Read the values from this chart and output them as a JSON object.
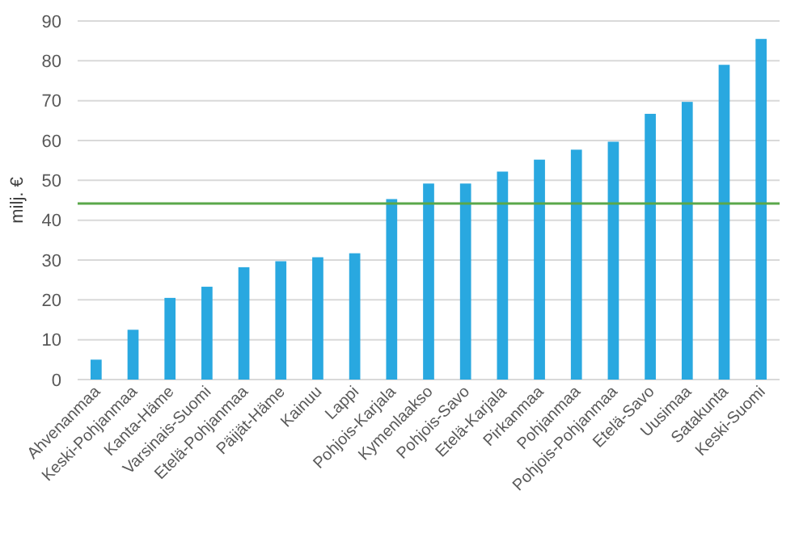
{
  "chart_data": {
    "type": "bar",
    "ylabel": "milj. €",
    "categories": [
      "Ahvenanmaa",
      "Keski-Pohjanmaa",
      "Kanta-Häme",
      "Varsinais-Suomi",
      "Etelä-Pohjanmaa",
      "Päijät-Häme",
      "Kainuu",
      "Lappi",
      "Pohjois-Karjala",
      "Kymenlaakso",
      "Pohjois-Savo",
      "Etelä-Karjala",
      "Pirkanmaa",
      "Pohjanmaa",
      "Pohjois-Pohjanmaa",
      "Etelä-Savo",
      "Uusimaa",
      "Satakunta",
      "Keski-Suomi"
    ],
    "values": [
      5,
      12.5,
      20.5,
      23.3,
      28.2,
      29.7,
      30.7,
      31.7,
      45.3,
      49.2,
      49.2,
      52.2,
      55.2,
      57.7,
      59.7,
      66.7,
      69.7,
      79,
      85.5
    ],
    "color": "#29a8e0",
    "ylim": [
      0,
      90
    ],
    "yticks": [
      0,
      10,
      20,
      30,
      40,
      50,
      60,
      70,
      80,
      90
    ],
    "grid": "y",
    "ref_lines": [
      {
        "axis": "y",
        "value": 44.2,
        "color": "#5aa84a"
      }
    ]
  }
}
